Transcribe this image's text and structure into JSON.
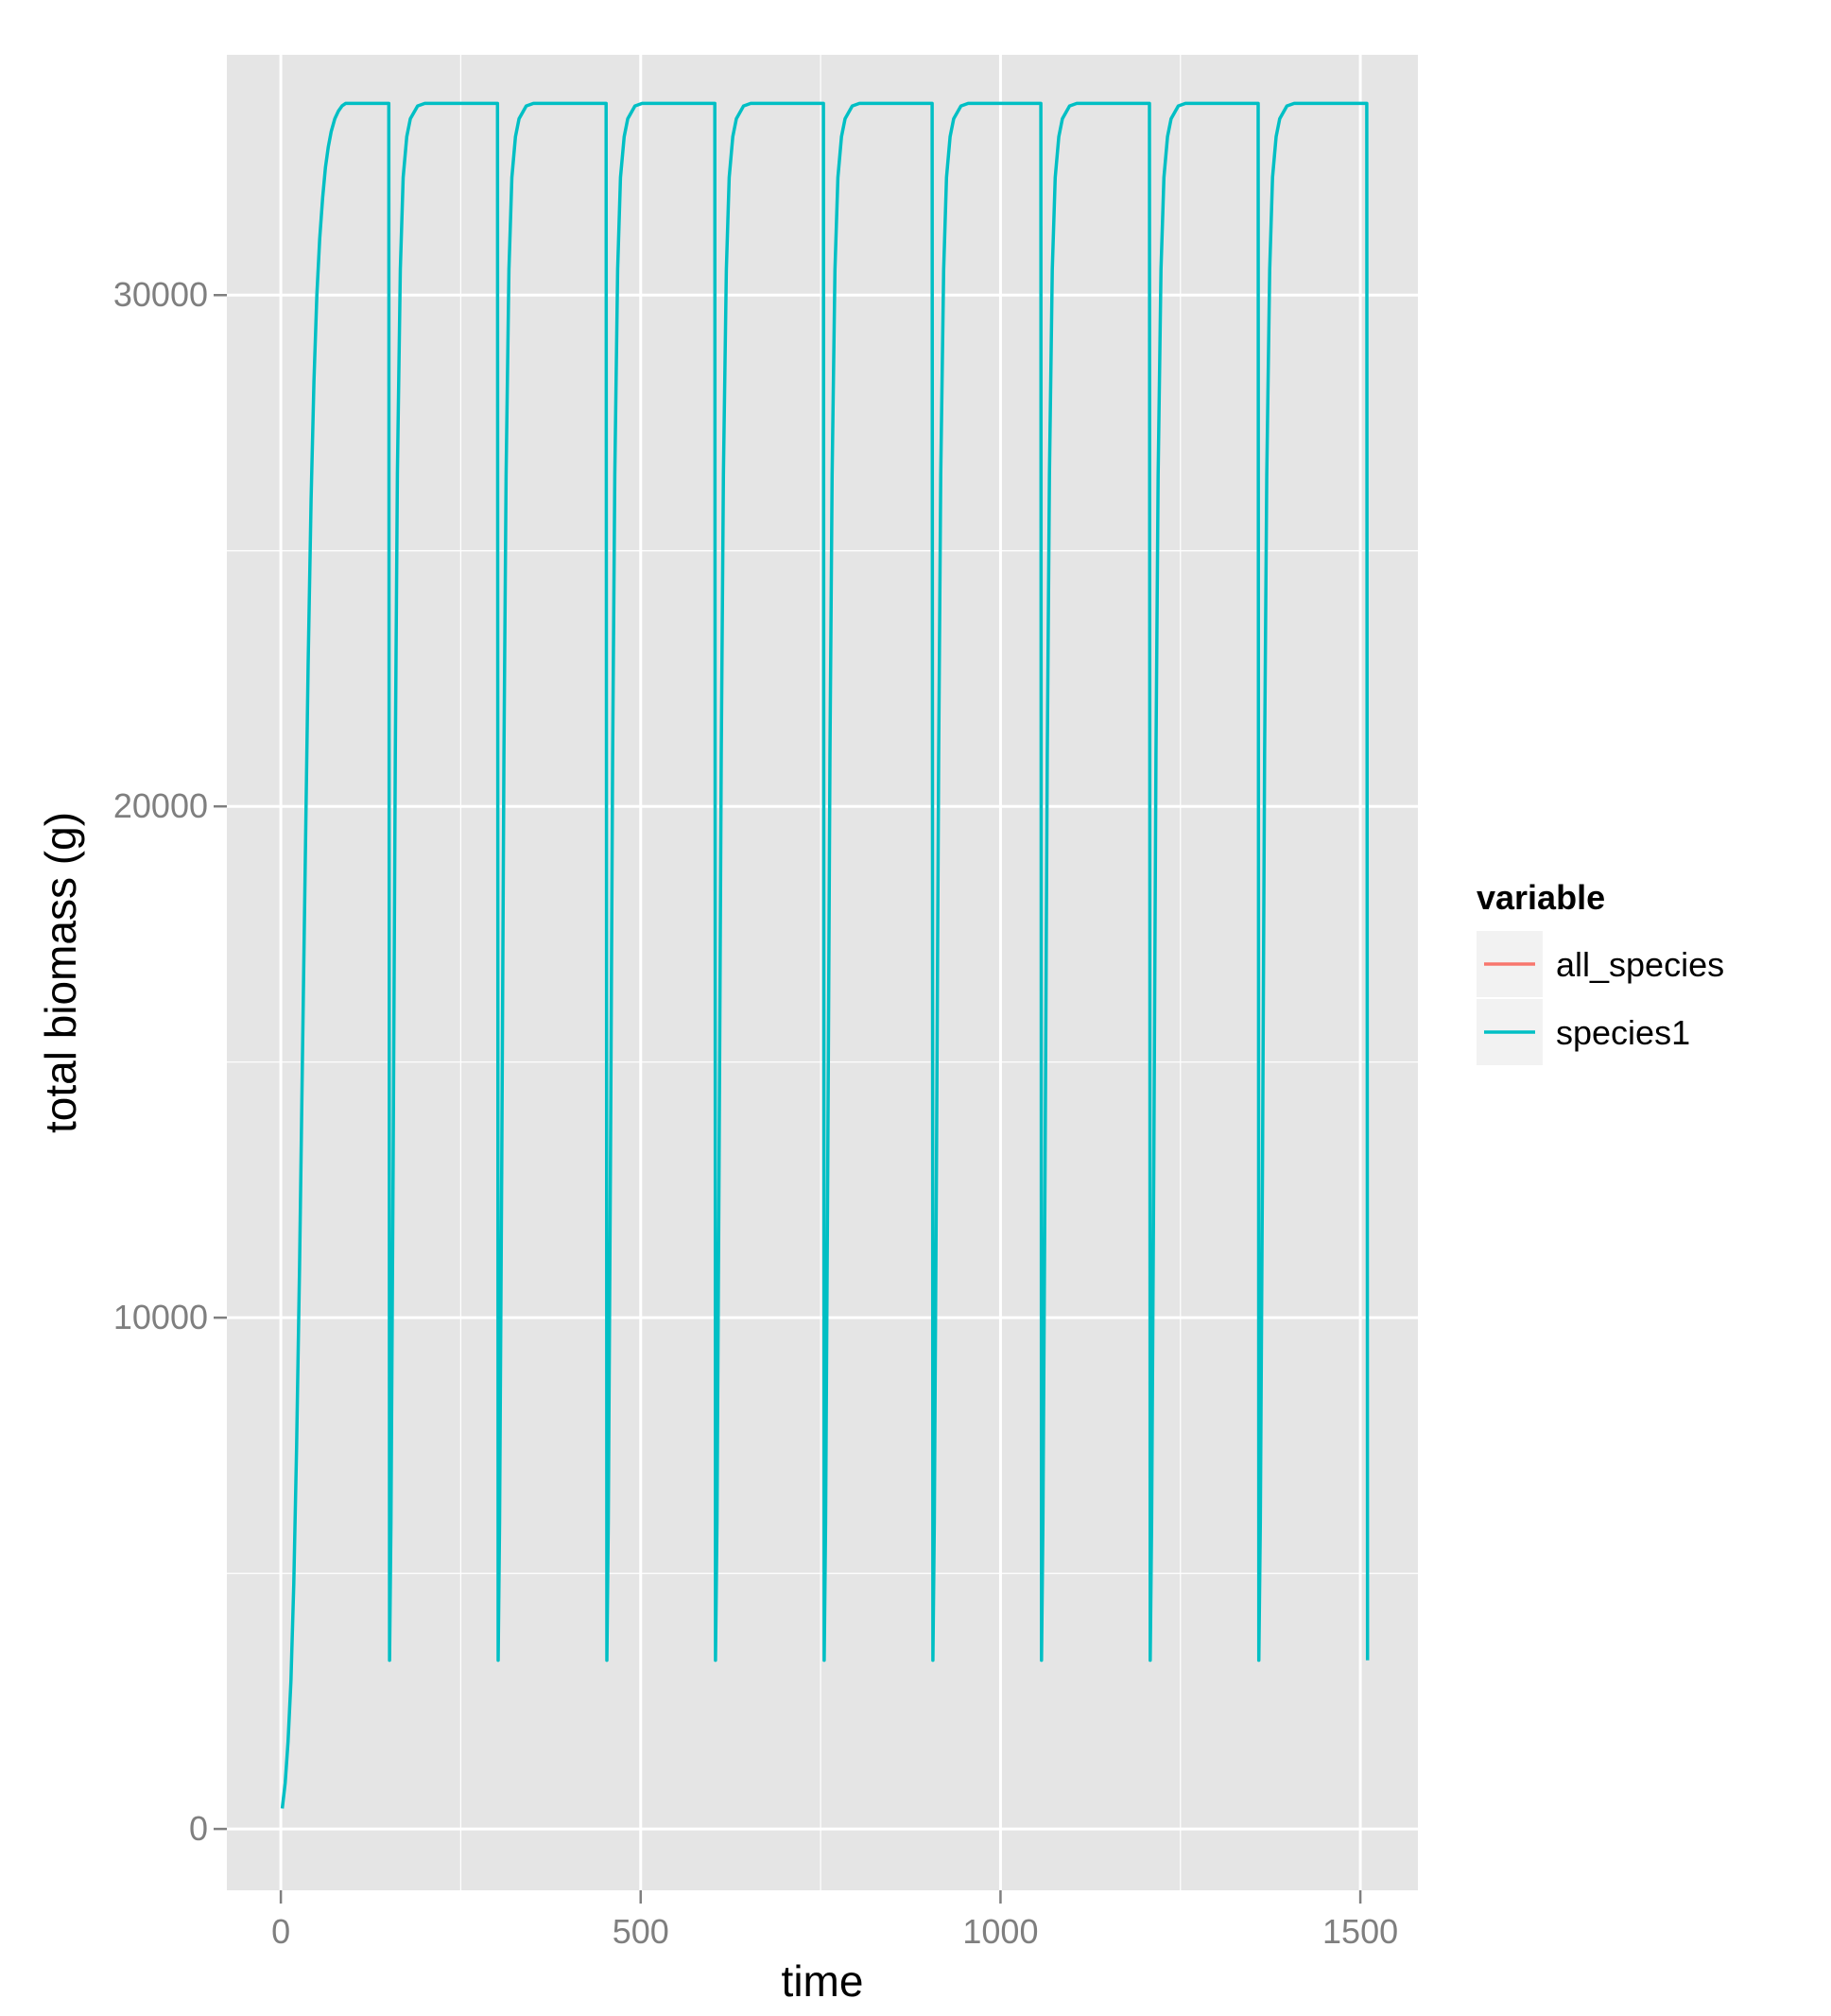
{
  "chart_data": {
    "type": "line",
    "title": "",
    "xlabel": "time",
    "ylabel": "total biomass (g)",
    "xlim": [
      -75,
      1580
    ],
    "ylim": [
      -1200,
      34700
    ],
    "x_ticks": [
      0,
      500,
      1000,
      1500
    ],
    "y_ticks": [
      0,
      10000,
      20000,
      30000
    ],
    "x_tick_labels": [
      "0",
      "500",
      "1000",
      "1500"
    ],
    "y_tick_labels": [
      "0",
      "10000",
      "20000",
      "30000"
    ],
    "grid": true,
    "panel_background": "#E5E5E5",
    "gridline_color": "#FFFFFF",
    "legend": {
      "title": "variable",
      "placement": "right",
      "entries": [
        {
          "label": "all_species",
          "color": "#F8766D"
        },
        {
          "label": "species1",
          "color": "#00BFC4"
        }
      ]
    },
    "series": [
      {
        "name": "species1",
        "color": "#00BFC4",
        "x": [
          2,
          6,
          10,
          14,
          18,
          22,
          26,
          30,
          34,
          38,
          42,
          46,
          50,
          54,
          58,
          62,
          66,
          70,
          75,
          80,
          85,
          90,
          95,
          100,
          110,
          120,
          130,
          140,
          150,
          151,
          153,
          156,
          159,
          162,
          166,
          170,
          175,
          180,
          190,
          200,
          220,
          250,
          280,
          301,
          302,
          304,
          307,
          310,
          313,
          317,
          321,
          326,
          331,
          341,
          351,
          371,
          401,
          431,
          452,
          453,
          455,
          458,
          461,
          464,
          468,
          472,
          477,
          482,
          492,
          502,
          522,
          552,
          582,
          603,
          604,
          606,
          609,
          612,
          615,
          619,
          623,
          628,
          633,
          643,
          653,
          673,
          703,
          733,
          754,
          755,
          757,
          760,
          763,
          766,
          770,
          774,
          779,
          784,
          794,
          804,
          824,
          854,
          884,
          905,
          906,
          908,
          911,
          914,
          917,
          921,
          925,
          930,
          935,
          945,
          955,
          975,
          1005,
          1035,
          1056,
          1057,
          1059,
          1062,
          1065,
          1068,
          1072,
          1076,
          1081,
          1086,
          1096,
          1106,
          1126,
          1156,
          1186,
          1207,
          1208,
          1210,
          1213,
          1216,
          1219,
          1223,
          1227,
          1232,
          1237,
          1247,
          1257,
          1277,
          1307,
          1337,
          1358,
          1359,
          1361,
          1364,
          1367,
          1370,
          1374,
          1378,
          1383,
          1388,
          1398,
          1408,
          1428,
          1458,
          1488,
          1509,
          1510
        ],
        "y": [
          400,
          900,
          1700,
          2900,
          4800,
          7500,
          11000,
          15000,
          19000,
          22800,
          26000,
          28300,
          30000,
          31100,
          31900,
          32500,
          32900,
          33200,
          33450,
          33600,
          33700,
          33750,
          33750,
          33750,
          33750,
          33750,
          33750,
          33750,
          33750,
          3300,
          6000,
          13000,
          21000,
          26500,
          30500,
          32300,
          33100,
          33450,
          33700,
          33750,
          33750,
          33750,
          33750,
          33750,
          3300,
          6000,
          13000,
          21000,
          26500,
          30500,
          32300,
          33100,
          33450,
          33700,
          33750,
          33750,
          33750,
          33750,
          33750,
          3300,
          6000,
          13000,
          21000,
          26500,
          30500,
          32300,
          33100,
          33450,
          33700,
          33750,
          33750,
          33750,
          33750,
          33750,
          3300,
          6000,
          13000,
          21000,
          26500,
          30500,
          32300,
          33100,
          33450,
          33700,
          33750,
          33750,
          33750,
          33750,
          33750,
          3300,
          6000,
          13000,
          21000,
          26500,
          30500,
          32300,
          33100,
          33450,
          33700,
          33750,
          33750,
          33750,
          33750,
          33750,
          3300,
          6000,
          13000,
          21000,
          26500,
          30500,
          32300,
          33100,
          33450,
          33700,
          33750,
          33750,
          33750,
          33750,
          33750,
          3300,
          6000,
          13000,
          21000,
          26500,
          30500,
          32300,
          33100,
          33450,
          33700,
          33750,
          33750,
          33750,
          33750,
          33750,
          3300,
          6000,
          13000,
          21000,
          26500,
          30500,
          32300,
          33100,
          33450,
          33700,
          33750,
          33750,
          33750,
          33750,
          33750,
          3300,
          6000,
          13000,
          21000,
          26500,
          30500,
          32300,
          33100,
          33450,
          33700,
          33750,
          33750,
          33750,
          33750,
          33750,
          3300
        ]
      }
    ]
  }
}
